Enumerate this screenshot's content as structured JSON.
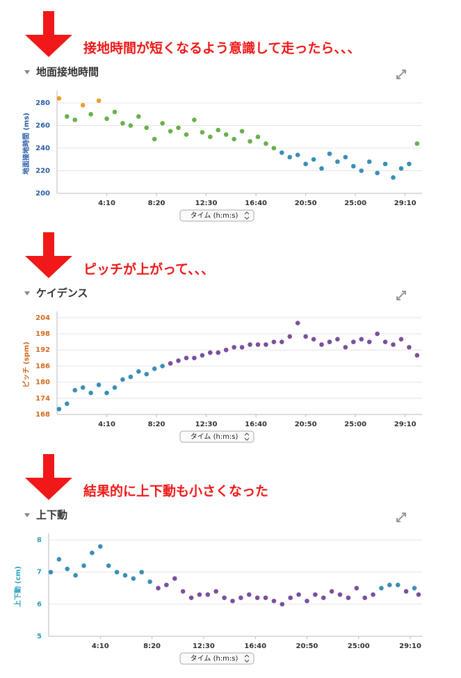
{
  "panels": [
    {
      "annotation": "接地時間が短くなるよう意識して走ったら、、、",
      "chart_data": {
        "type": "scatter",
        "title": "地面接地時間",
        "y_label": "地面接地時間 (ms)",
        "x_selector": "タイム (h:m:s)",
        "axis_color": "#2a5caa",
        "xlim": [
          0,
          1835
        ],
        "ylim": [
          200,
          288
        ],
        "xticks": [
          {
            "value": 250,
            "label": "4:10"
          },
          {
            "value": 500,
            "label": "8:20"
          },
          {
            "value": 750,
            "label": "12:30"
          },
          {
            "value": 1000,
            "label": "16:40"
          },
          {
            "value": 1250,
            "label": "20:50"
          },
          {
            "value": 1500,
            "label": "25:00"
          },
          {
            "value": 1750,
            "label": "29:10"
          }
        ],
        "yticks": [
          200,
          220,
          240,
          260,
          280
        ],
        "x": [
          10,
          50,
          90,
          130,
          170,
          210,
          250,
          290,
          330,
          370,
          410,
          450,
          490,
          530,
          570,
          610,
          650,
          690,
          730,
          770,
          810,
          850,
          890,
          930,
          970,
          1010,
          1050,
          1090,
          1130,
          1170,
          1210,
          1250,
          1290,
          1330,
          1370,
          1410,
          1450,
          1490,
          1530,
          1570,
          1610,
          1650,
          1690,
          1730,
          1770,
          1810
        ],
        "values": [
          284,
          268,
          265,
          278,
          270,
          282,
          266,
          272,
          262,
          260,
          268,
          258,
          248,
          262,
          255,
          258,
          252,
          265,
          254,
          250,
          256,
          252,
          248,
          255,
          246,
          250,
          244,
          240,
          236,
          232,
          234,
          226,
          230,
          222,
          235,
          228,
          232,
          224,
          220,
          228,
          218,
          226,
          214,
          222,
          226,
          244
        ],
        "colors": [
          "#e8a030",
          "#6ab04c",
          "#6ab04c",
          "#e8a030",
          "#6ab04c",
          "#e8a030",
          "#6ab04c",
          "#6ab04c",
          "#6ab04c",
          "#6ab04c",
          "#6ab04c",
          "#6ab04c",
          "#6ab04c",
          "#6ab04c",
          "#6ab04c",
          "#6ab04c",
          "#6ab04c",
          "#6ab04c",
          "#6ab04c",
          "#6ab04c",
          "#6ab04c",
          "#6ab04c",
          "#6ab04c",
          "#6ab04c",
          "#6ab04c",
          "#6ab04c",
          "#6ab04c",
          "#6ab04c",
          "#3a8fb7",
          "#3a8fb7",
          "#3a8fb7",
          "#3a8fb7",
          "#3a8fb7",
          "#3a8fb7",
          "#3a8fb7",
          "#3a8fb7",
          "#3a8fb7",
          "#3a8fb7",
          "#3a8fb7",
          "#3a8fb7",
          "#3a8fb7",
          "#3a8fb7",
          "#3a8fb7",
          "#3a8fb7",
          "#3a8fb7",
          "#6ab04c"
        ]
      }
    },
    {
      "annotation": "ピッチが上がって、、、",
      "chart_data": {
        "type": "scatter",
        "title": "ケイデンス",
        "y_label": "ピッチ (spm)",
        "x_selector": "タイム (h:m:s)",
        "axis_color": "#d2691e",
        "xlim": [
          0,
          1835
        ],
        "ylim": [
          168,
          205
        ],
        "xticks": [
          {
            "value": 250,
            "label": "4:10"
          },
          {
            "value": 500,
            "label": "8:20"
          },
          {
            "value": 750,
            "label": "12:30"
          },
          {
            "value": 1000,
            "label": "16:40"
          },
          {
            "value": 1250,
            "label": "20:50"
          },
          {
            "value": 1500,
            "label": "25:00"
          },
          {
            "value": 1750,
            "label": "29:10"
          }
        ],
        "yticks": [
          168,
          174,
          180,
          186,
          192,
          198,
          204
        ],
        "x": [
          10,
          50,
          90,
          130,
          170,
          210,
          250,
          290,
          330,
          370,
          410,
          450,
          490,
          530,
          570,
          610,
          650,
          690,
          730,
          770,
          810,
          850,
          890,
          930,
          970,
          1010,
          1050,
          1090,
          1130,
          1170,
          1210,
          1250,
          1290,
          1330,
          1370,
          1410,
          1450,
          1490,
          1530,
          1570,
          1610,
          1650,
          1690,
          1730,
          1770,
          1810
        ],
        "values": [
          170,
          172,
          177,
          178,
          176,
          179,
          176,
          178,
          181,
          182,
          184,
          183,
          185,
          186,
          187,
          188,
          189,
          189,
          190,
          191,
          191,
          192,
          193,
          193,
          194,
          194,
          194,
          195,
          195,
          197,
          202,
          197,
          196,
          194,
          195,
          196,
          193,
          195,
          196,
          195,
          198,
          195,
          194,
          196,
          193,
          190
        ],
        "colors": [
          "#3a8fb7",
          "#3a8fb7",
          "#3a8fb7",
          "#3a8fb7",
          "#3a8fb7",
          "#3a8fb7",
          "#3a8fb7",
          "#3a8fb7",
          "#3a8fb7",
          "#3a8fb7",
          "#3a8fb7",
          "#3a8fb7",
          "#3a8fb7",
          "#3a8fb7",
          "#7b4f9d",
          "#7b4f9d",
          "#7b4f9d",
          "#7b4f9d",
          "#7b4f9d",
          "#7b4f9d",
          "#7b4f9d",
          "#7b4f9d",
          "#7b4f9d",
          "#7b4f9d",
          "#7b4f9d",
          "#7b4f9d",
          "#7b4f9d",
          "#7b4f9d",
          "#7b4f9d",
          "#7b4f9d",
          "#7b4f9d",
          "#7b4f9d",
          "#7b4f9d",
          "#7b4f9d",
          "#7b4f9d",
          "#7b4f9d",
          "#7b4f9d",
          "#7b4f9d",
          "#7b4f9d",
          "#7b4f9d",
          "#7b4f9d",
          "#7b4f9d",
          "#7b4f9d",
          "#7b4f9d",
          "#7b4f9d",
          "#7b4f9d"
        ]
      }
    },
    {
      "annotation": "結果的に上下動も小さくなった",
      "chart_data": {
        "type": "scatter",
        "title": "上下動",
        "y_label": "上下動 (cm)",
        "x_selector": "タイム (h:m:s)",
        "axis_color": "#2aa0c0",
        "xlim": [
          0,
          1807
        ],
        "ylim": [
          5,
          8.1
        ],
        "xticks": [
          {
            "value": 250,
            "label": "4:10"
          },
          {
            "value": 500,
            "label": "8:20"
          },
          {
            "value": 750,
            "label": "12:30"
          },
          {
            "value": 1000,
            "label": "16:40"
          },
          {
            "value": 1250,
            "label": "20:50"
          },
          {
            "value": 1500,
            "label": "25:00"
          },
          {
            "value": 1750,
            "label": "29:10"
          }
        ],
        "yticks": [
          5,
          6,
          7,
          8
        ],
        "x": [
          10,
          50,
          90,
          130,
          170,
          210,
          250,
          290,
          330,
          370,
          410,
          450,
          490,
          530,
          570,
          610,
          650,
          690,
          730,
          770,
          810,
          850,
          890,
          930,
          970,
          1010,
          1050,
          1090,
          1130,
          1170,
          1210,
          1250,
          1290,
          1330,
          1370,
          1410,
          1450,
          1490,
          1530,
          1570,
          1610,
          1650,
          1690,
          1730,
          1770,
          1790
        ],
        "values": [
          7.0,
          7.4,
          7.1,
          6.9,
          7.2,
          7.6,
          7.8,
          7.2,
          7.0,
          6.9,
          6.8,
          7.0,
          6.7,
          6.5,
          6.6,
          6.8,
          6.4,
          6.2,
          6.3,
          6.3,
          6.4,
          6.2,
          6.1,
          6.2,
          6.3,
          6.2,
          6.2,
          6.1,
          6.0,
          6.2,
          6.3,
          6.1,
          6.3,
          6.2,
          6.4,
          6.3,
          6.2,
          6.5,
          6.2,
          6.3,
          6.5,
          6.6,
          6.6,
          6.4,
          6.5,
          6.3
        ],
        "colors": [
          "#3a8fb7",
          "#3a8fb7",
          "#3a8fb7",
          "#3a8fb7",
          "#3a8fb7",
          "#3a8fb7",
          "#3a8fb7",
          "#3a8fb7",
          "#3a8fb7",
          "#3a8fb7",
          "#3a8fb7",
          "#3a8fb7",
          "#3a8fb7",
          "#7b4f9d",
          "#7b4f9d",
          "#7b4f9d",
          "#7b4f9d",
          "#7b4f9d",
          "#7b4f9d",
          "#7b4f9d",
          "#7b4f9d",
          "#7b4f9d",
          "#7b4f9d",
          "#7b4f9d",
          "#7b4f9d",
          "#7b4f9d",
          "#7b4f9d",
          "#7b4f9d",
          "#7b4f9d",
          "#7b4f9d",
          "#7b4f9d",
          "#7b4f9d",
          "#7b4f9d",
          "#7b4f9d",
          "#7b4f9d",
          "#7b4f9d",
          "#7b4f9d",
          "#7b4f9d",
          "#7b4f9d",
          "#7b4f9d",
          "#3a8fb7",
          "#3a8fb7",
          "#3a8fb7",
          "#7b4f9d",
          "#3a8fb7",
          "#7b4f9d"
        ]
      }
    }
  ]
}
